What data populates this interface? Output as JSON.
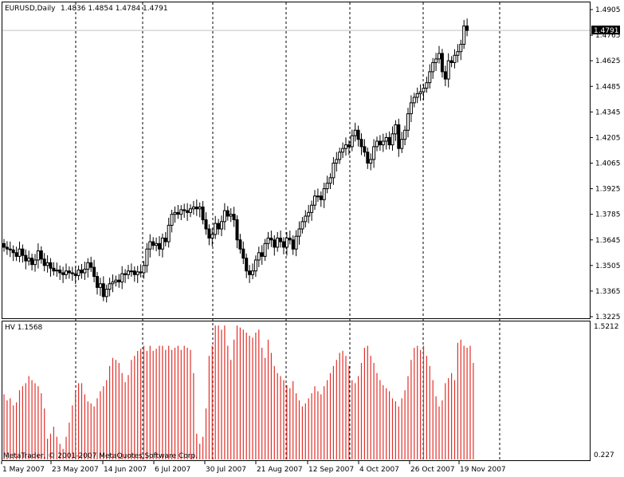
{
  "header": {
    "symbol_timeframe": "EURUSD,Daily",
    "ohlc": "1.4836 1.4854 1.4784 1.4791"
  },
  "indicator": {
    "label": "HV 1.1568",
    "scale_max": "1.5212",
    "scale_min": "0.227"
  },
  "footer": {
    "copyright": "MetaTrader, © 2001-2007 MetaQuotes Software Corp."
  },
  "current_price_label": "1.4791",
  "colors": {
    "background": "#ffffff",
    "candles": "#000000",
    "hv_bars": "#e0302a",
    "current_price_line": "#c0c0c0",
    "grid": "#000000"
  },
  "chart_data": [
    {
      "type": "candlestick",
      "symbol": "EURUSD",
      "timeframe": "Daily",
      "ylim": [
        1.3225,
        1.4905
      ],
      "y_ticks": [
        "1.4905",
        "1.4765",
        "1.4625",
        "1.4485",
        "1.4345",
        "1.4205",
        "1.4065",
        "1.3925",
        "1.3785",
        "1.3645",
        "1.3505",
        "1.3365",
        "1.3225"
      ],
      "x_ticks": [
        "1 May 2007",
        "23 May 2007",
        "14 Jun 2007",
        "6 Jul 2007",
        "30 Jul 2007",
        "21 Aug 2007",
        "12 Sep 2007",
        "4 Oct 2007",
        "26 Oct 2007",
        "19 Nov 2007"
      ],
      "vertical_grid": "dashed",
      "current_price": 1.4791,
      "close": [
        1.3605,
        1.3595,
        1.359,
        1.3575,
        1.3555,
        1.3595,
        1.356,
        1.353,
        1.3545,
        1.351,
        1.3535,
        1.3585,
        1.354,
        1.3505,
        1.352,
        1.349,
        1.3475,
        1.348,
        1.3465,
        1.3455,
        1.3475,
        1.3465,
        1.346,
        1.345,
        1.348,
        1.3465,
        1.3485,
        1.352,
        1.3495,
        1.3445,
        1.3385,
        1.3405,
        1.3335,
        1.3375,
        1.3405,
        1.3415,
        1.3425,
        1.3415,
        1.346,
        1.3455,
        1.3475,
        1.3475,
        1.3455,
        1.347,
        1.3465,
        1.3505,
        1.3595,
        1.3635,
        1.3615,
        1.3625,
        1.3595,
        1.3655,
        1.3635,
        1.3725,
        1.3785,
        1.3795,
        1.3785,
        1.381,
        1.3805,
        1.3795,
        1.3815,
        1.3825,
        1.3815,
        1.3825,
        1.3755,
        1.3705,
        1.3655,
        1.3675,
        1.3735,
        1.3705,
        1.3745,
        1.3805,
        1.3775,
        1.3785,
        1.3755,
        1.3645,
        1.3595,
        1.3545,
        1.3475,
        1.3455,
        1.3475,
        1.3535,
        1.3575,
        1.3555,
        1.3625,
        1.3655,
        1.3645,
        1.3605,
        1.3655,
        1.3635,
        1.3605,
        1.3655,
        1.3645,
        1.3595,
        1.3665,
        1.3705,
        1.3745,
        1.3775,
        1.3795,
        1.3835,
        1.3885,
        1.3885,
        1.3865,
        1.3925,
        1.3955,
        1.3985,
        1.4065,
        1.4085,
        1.4125,
        1.4145,
        1.4165,
        1.4155,
        1.4215,
        1.4245,
        1.4195,
        1.4155,
        1.4125,
        1.4065,
        1.4085,
        1.4155,
        1.4185,
        1.4165,
        1.4185,
        1.4205,
        1.4165,
        1.4225,
        1.4275,
        1.4145,
        1.4195,
        1.4245,
        1.4335,
        1.4395,
        1.4425,
        1.4445,
        1.4455,
        1.4475,
        1.4505,
        1.4565,
        1.4615,
        1.4635,
        1.4665,
        1.4565,
        1.4525,
        1.4625,
        1.4615,
        1.4655,
        1.4675,
        1.4715,
        1.4815,
        1.4791
      ]
    },
    {
      "type": "bar",
      "name": "HV",
      "ylim": [
        0.227,
        1.5212
      ],
      "values": [
        0.84,
        0.78,
        0.8,
        0.73,
        0.76,
        0.88,
        0.92,
        0.95,
        1.02,
        0.98,
        0.95,
        0.92,
        0.85,
        0.7,
        0.4,
        0.45,
        0.52,
        0.42,
        0.35,
        0.3,
        0.42,
        0.56,
        0.73,
        0.88,
        0.95,
        0.95,
        0.84,
        0.77,
        0.75,
        0.72,
        0.8,
        0.87,
        0.92,
        0.98,
        1.12,
        1.2,
        1.18,
        1.15,
        1.05,
        0.96,
        1.03,
        1.18,
        1.22,
        1.27,
        1.29,
        1.32,
        1.27,
        1.32,
        1.27,
        1.29,
        1.32,
        1.32,
        1.28,
        1.32,
        1.28,
        1.3,
        1.32,
        1.28,
        1.32,
        1.3,
        1.28,
        1.05,
        0.45,
        0.35,
        0.42,
        0.7,
        1.22,
        1.32,
        1.52,
        1.52,
        1.48,
        1.52,
        1.32,
        1.18,
        1.38,
        1.52,
        1.5,
        1.48,
        1.45,
        1.42,
        1.4,
        1.45,
        1.48,
        1.3,
        1.2,
        1.38,
        1.25,
        1.12,
        1.05,
        1.02,
        0.98,
        0.93,
        0.9,
        0.97,
        0.85,
        0.78,
        0.72,
        0.75,
        0.8,
        0.85,
        0.92,
        0.87,
        0.84,
        0.92,
        0.98,
        1.05,
        1.12,
        1.18,
        1.25,
        1.27,
        1.22,
        1.12,
        0.98,
        0.95,
        1.02,
        1.15,
        1.3,
        1.32,
        1.22,
        1.15,
        1.05,
        0.98,
        0.93,
        0.9,
        0.87,
        0.8,
        0.77,
        0.72,
        0.8,
        0.88,
        1.02,
        1.18,
        1.3,
        1.32,
        1.28,
        1.32,
        1.22,
        1.12,
        0.98,
        0.82,
        0.72,
        0.78,
        0.95,
        1.0,
        1.05,
        0.98,
        1.35,
        1.38,
        1.32,
        1.3,
        1.32,
        1.15
      ]
    }
  ]
}
